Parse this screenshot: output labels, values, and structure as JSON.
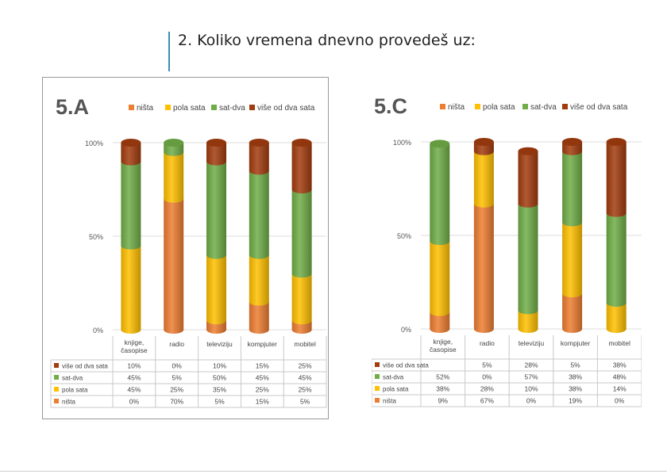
{
  "question": "2.  Koliko vremena dnevno provedeš uz:",
  "colors": {
    "nista": "#ed7d31",
    "pola_sata": "#ffc000",
    "sat_dva": "#70ad47",
    "vise": "#a23c0e"
  },
  "chart_data": [
    {
      "type": "bar",
      "stacked": true,
      "percent": true,
      "title": "5.A",
      "categories": [
        "knjige, časopise",
        "radio",
        "televiziju",
        "kompjuter",
        "mobitel"
      ],
      "y_ticks": [
        "0%",
        "50%",
        "100%"
      ],
      "ylim": [
        0,
        100
      ],
      "legend_position": "top",
      "series": [
        {
          "name": "ništa",
          "key": "nista",
          "values": [
            0,
            70,
            5,
            15,
            5
          ]
        },
        {
          "name": "pola sata",
          "key": "pola_sata",
          "values": [
            45,
            25,
            35,
            25,
            25
          ]
        },
        {
          "name": "sat-dva",
          "key": "sat_dva",
          "values": [
            45,
            5,
            50,
            45,
            45
          ]
        },
        {
          "name": "više od dva sata",
          "key": "vise",
          "values": [
            10,
            0,
            10,
            15,
            25
          ]
        }
      ],
      "table_rows": [
        {
          "key": "vise",
          "label": "više od dva sata",
          "cells": [
            "10%",
            "0%",
            "10%",
            "15%",
            "25%"
          ]
        },
        {
          "key": "sat_dva",
          "label": "sat-dva",
          "cells": [
            "45%",
            "5%",
            "50%",
            "45%",
            "45%"
          ]
        },
        {
          "key": "pola_sata",
          "label": "pola sata",
          "cells": [
            "45%",
            "25%",
            "35%",
            "25%",
            "25%"
          ]
        },
        {
          "key": "nista",
          "label": "ništa",
          "cells": [
            "0%",
            "70%",
            "5%",
            "15%",
            "5%"
          ]
        }
      ]
    },
    {
      "type": "bar",
      "stacked": true,
      "percent": true,
      "title": "5.C",
      "categories": [
        "knjige, časopise",
        "radio",
        "televiziju",
        "kompjuter",
        "mobitel"
      ],
      "y_ticks": [
        "0%",
        "50%",
        "100%"
      ],
      "ylim": [
        0,
        100
      ],
      "legend_position": "top",
      "series": [
        {
          "name": "ništa",
          "key": "nista",
          "values": [
            9,
            67,
            0,
            19,
            0
          ]
        },
        {
          "name": "pola sata",
          "key": "pola_sata",
          "values": [
            38,
            28,
            10,
            38,
            14
          ]
        },
        {
          "name": "sat-dva",
          "key": "sat_dva",
          "values": [
            52,
            0,
            57,
            38,
            48
          ]
        },
        {
          "name": "više od dva sata",
          "key": "vise",
          "values": [
            0,
            5,
            28,
            5,
            38
          ]
        }
      ],
      "table_rows": [
        {
          "key": "vise",
          "label": "više od dva sata",
          "cells": [
            "",
            "5%",
            "28%",
            "5%",
            "38%"
          ]
        },
        {
          "key": "sat_dva",
          "label": "sat-dva",
          "cells": [
            "52%",
            "0%",
            "57%",
            "38%",
            "48%"
          ]
        },
        {
          "key": "pola_sata",
          "label": "pola sata",
          "cells": [
            "38%",
            "28%",
            "10%",
            "38%",
            "14%"
          ]
        },
        {
          "key": "nista",
          "label": "ništa",
          "cells": [
            "9%",
            "67%",
            "0%",
            "19%",
            "0%"
          ]
        }
      ]
    }
  ]
}
